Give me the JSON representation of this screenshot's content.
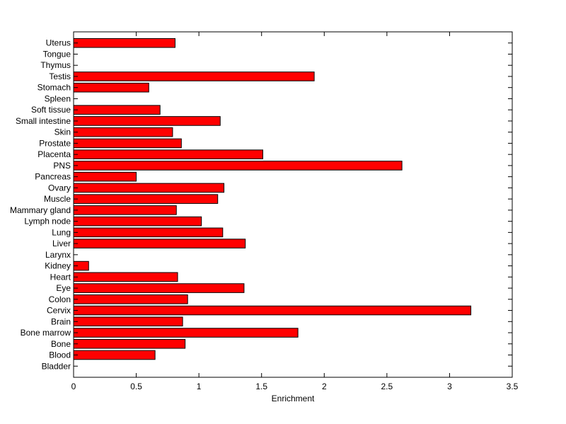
{
  "chart_data": {
    "type": "bar",
    "orientation": "horizontal",
    "title": "",
    "xlabel": "Enrichment",
    "ylabel": "",
    "xlim": [
      0,
      3.5
    ],
    "x_ticks": [
      0,
      0.5,
      1,
      1.5,
      2,
      2.5,
      3,
      3.5
    ],
    "x_tick_labels": [
      "0",
      "0.5",
      "1",
      "1.5",
      "2",
      "2.5",
      "3",
      "3.5"
    ],
    "grid": false,
    "legend": "none",
    "bar_color": "#ff0000",
    "bar_edge_color": "#000000",
    "categories": [
      "Bladder",
      "Blood",
      "Bone",
      "Bone marrow",
      "Brain",
      "Cervix",
      "Colon",
      "Eye",
      "Heart",
      "Kidney",
      "Larynx",
      "Liver",
      "Lung",
      "Lymph node",
      "Mammary gland",
      "Muscle",
      "Ovary",
      "Pancreas",
      "PNS",
      "Placenta",
      "Prostate",
      "Skin",
      "Small intestine",
      "Soft tissue",
      "Spleen",
      "Stomach",
      "Testis",
      "Thymus",
      "Tongue",
      "Uterus"
    ],
    "values": [
      0,
      0.65,
      0.89,
      1.79,
      0.87,
      3.17,
      0.91,
      1.36,
      0.83,
      0.12,
      0,
      1.37,
      1.19,
      1.02,
      0.82,
      1.15,
      1.2,
      0.5,
      2.62,
      1.51,
      0.86,
      0.79,
      1.17,
      0.69,
      0,
      0.6,
      1.92,
      0,
      0,
      0.81
    ]
  }
}
